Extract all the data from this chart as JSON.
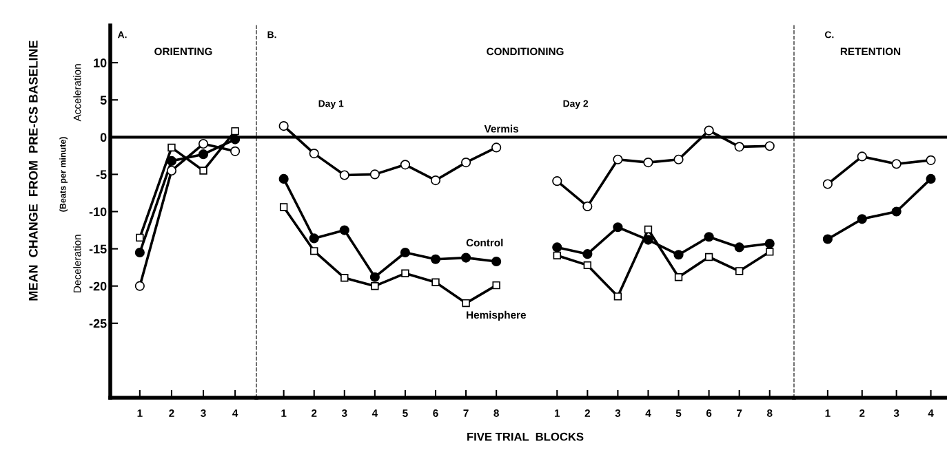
{
  "chart_data": [
    {
      "type": "line",
      "title": "ORIENTING",
      "ylabel": "MEAN  CHANGE  FROM  PRE-CS BASELINE",
      "categories": [
        "1",
        "2",
        "3",
        "4"
      ],
      "ylim": [
        -35,
        15
      ],
      "yticks": [
        10,
        5,
        0,
        -5,
        -10,
        -15,
        -20,
        -25
      ],
      "grid": false,
      "legend": false,
      "annotations": [
        "A.",
        "(Beats per minute)",
        "Acceleration",
        "Deceleration"
      ],
      "ref_lines": [
        {
          "axis": "y",
          "value": 0,
          "color": "#000000",
          "line_style": "solid"
        }
      ],
      "series": [
        {
          "color": "#000000",
          "marker": "circle",
          "colors": [
            "#ffffff",
            "#ffffff",
            "#ffffff",
            "#ffffff"
          ],
          "values": [
            -20,
            -4.5,
            -0.9,
            -1.9
          ]
        },
        {
          "color": "#000000",
          "marker": "circle",
          "colors": [
            "#000000",
            "#000000",
            "#000000",
            "#000000"
          ],
          "values": [
            -15.5,
            -3.2,
            -2.3,
            -0.3
          ]
        },
        {
          "color": "#000000",
          "marker": "square",
          "colors": [
            "#ffffff",
            "#ffffff",
            "#ffffff",
            "#ffffff"
          ],
          "values": [
            -13.5,
            -1.4,
            -4.5,
            0.8
          ]
        }
      ]
    },
    {
      "type": "line",
      "title": "CONDITIONING",
      "xlabel": "FIVE TRIAL  BLOCKS",
      "categories": [
        "1",
        "2",
        "3",
        "4",
        "5",
        "6",
        "7",
        "8",
        null,
        "1",
        "2",
        "3",
        "4",
        "5",
        "6",
        "7",
        "8"
      ],
      "ylim": [
        -35,
        15
      ],
      "tick_labels": "x",
      "grid": false,
      "legend": false,
      "annotations": [
        "B.",
        "Day 1",
        "Day 2"
      ],
      "ref_lines": [
        {
          "axis": "y",
          "value": 0,
          "color": "#000000",
          "line_style": "solid"
        }
      ],
      "series": [
        {
          "name": "Vermis",
          "color": "#000000",
          "marker": "circle",
          "colors": [
            "#ffffff",
            "#ffffff",
            "#ffffff",
            "#ffffff",
            "#ffffff",
            "#ffffff",
            "#ffffff",
            "#ffffff",
            null,
            "#ffffff",
            "#ffffff",
            "#ffffff",
            "#ffffff",
            "#ffffff",
            "#ffffff",
            "#ffffff",
            "#ffffff"
          ],
          "values": [
            1.5,
            -2.2,
            -5.1,
            -5.0,
            -3.7,
            -5.8,
            -3.4,
            -1.4,
            null,
            -5.9,
            -9.3,
            -3.0,
            -3.4,
            -3.0,
            0.9,
            -1.3,
            -1.2
          ]
        },
        {
          "name": "Control",
          "color": "#000000",
          "marker": "circle",
          "colors": [
            "#000000",
            "#000000",
            "#000000",
            "#000000",
            "#000000",
            "#000000",
            "#000000",
            "#000000",
            null,
            "#000000",
            "#000000",
            "#000000",
            "#000000",
            "#000000",
            "#000000",
            "#000000",
            "#000000"
          ],
          "values": [
            -5.6,
            -13.6,
            -12.5,
            -18.8,
            -15.5,
            -16.4,
            -16.2,
            -16.7,
            null,
            -14.8,
            -15.7,
            -12.1,
            -13.8,
            -15.8,
            -13.4,
            -14.8,
            -14.3
          ]
        },
        {
          "name": "Hemisphere",
          "color": "#000000",
          "marker": "square",
          "colors": [
            "#ffffff",
            "#ffffff",
            "#ffffff",
            "#ffffff",
            "#ffffff",
            "#ffffff",
            "#ffffff",
            "#ffffff",
            null,
            "#ffffff",
            "#ffffff",
            "#ffffff",
            "#ffffff",
            "#ffffff",
            "#ffffff",
            "#ffffff",
            "#ffffff"
          ],
          "values": [
            -9.4,
            -15.3,
            -18.9,
            -20.0,
            -18.3,
            -19.5,
            -22.3,
            -19.9,
            null,
            -15.9,
            -17.2,
            -21.4,
            -12.4,
            -18.8,
            -16.1,
            -18.0,
            -15.4
          ]
        }
      ]
    },
    {
      "type": "line",
      "title": "RETENTION",
      "categories": [
        "1",
        "2",
        "3",
        "4"
      ],
      "ylim": [
        -35,
        15
      ],
      "tick_labels": "x",
      "grid": false,
      "legend": false,
      "annotations": [
        "C."
      ],
      "ref_lines": [
        {
          "axis": "y",
          "value": 0,
          "color": "#000000",
          "line_style": "solid"
        }
      ],
      "series": [
        {
          "color": "#000000",
          "marker": "circle",
          "colors": [
            "#ffffff",
            "#ffffff",
            "#ffffff",
            "#ffffff"
          ],
          "values": [
            -6.3,
            -2.6,
            -3.6,
            -3.1
          ]
        },
        {
          "color": "#000000",
          "marker": "circle",
          "colors": [
            "#000000",
            "#000000",
            "#000000",
            "#000000"
          ],
          "values": [
            -13.7,
            -11.0,
            -10.0,
            -5.6
          ]
        }
      ]
    }
  ]
}
